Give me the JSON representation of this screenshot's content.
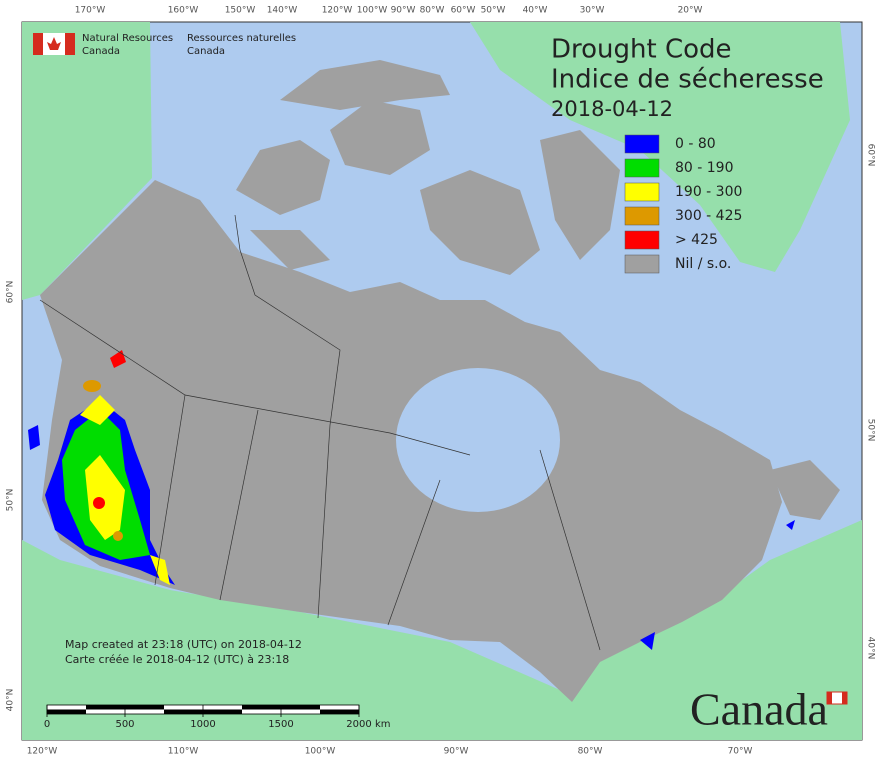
{
  "agency": {
    "en": [
      "Natural Resources",
      "Canada"
    ],
    "fr": [
      "Ressources naturelles",
      "Canada"
    ]
  },
  "title": [
    "Drought Code",
    "Indice de sécheresse"
  ],
  "date": "2018-04-12",
  "legend": [
    {
      "label": "0 - 80",
      "color": "#0000ff"
    },
    {
      "label": "80 - 190",
      "color": "#00dd00"
    },
    {
      "label": "190 - 300",
      "color": "#ffff00"
    },
    {
      "label": "300 - 425",
      "color": "#dd9900"
    },
    {
      "label": "> 425",
      "color": "#ff0000"
    },
    {
      "label": "Nil / s.o.",
      "color": "#a0a0a0"
    }
  ],
  "graticule": {
    "top": [
      "170°W",
      "160°W",
      "150°W",
      "140°W",
      "120°W",
      "100°W",
      "90°W",
      "80°W",
      "60°W",
      "50°W",
      "40°W",
      "30°W",
      "20°W"
    ],
    "bottom": [
      "120°W",
      "110°W",
      "100°W",
      "90°W",
      "80°W",
      "70°W"
    ],
    "left": [
      "60°N",
      "50°N",
      "40°N"
    ],
    "right": [
      "60°N",
      "50°N",
      "40°N"
    ]
  },
  "credits": [
    "Map created at 23:18 (UTC) on 2018-04-12",
    "Carte créée le 2018-04-12 (UTC) à 23:18"
  ],
  "scale": {
    "ticks": [
      0,
      500,
      1000,
      1500,
      2000
    ],
    "unit": "km"
  },
  "wordmark": "Canada"
}
